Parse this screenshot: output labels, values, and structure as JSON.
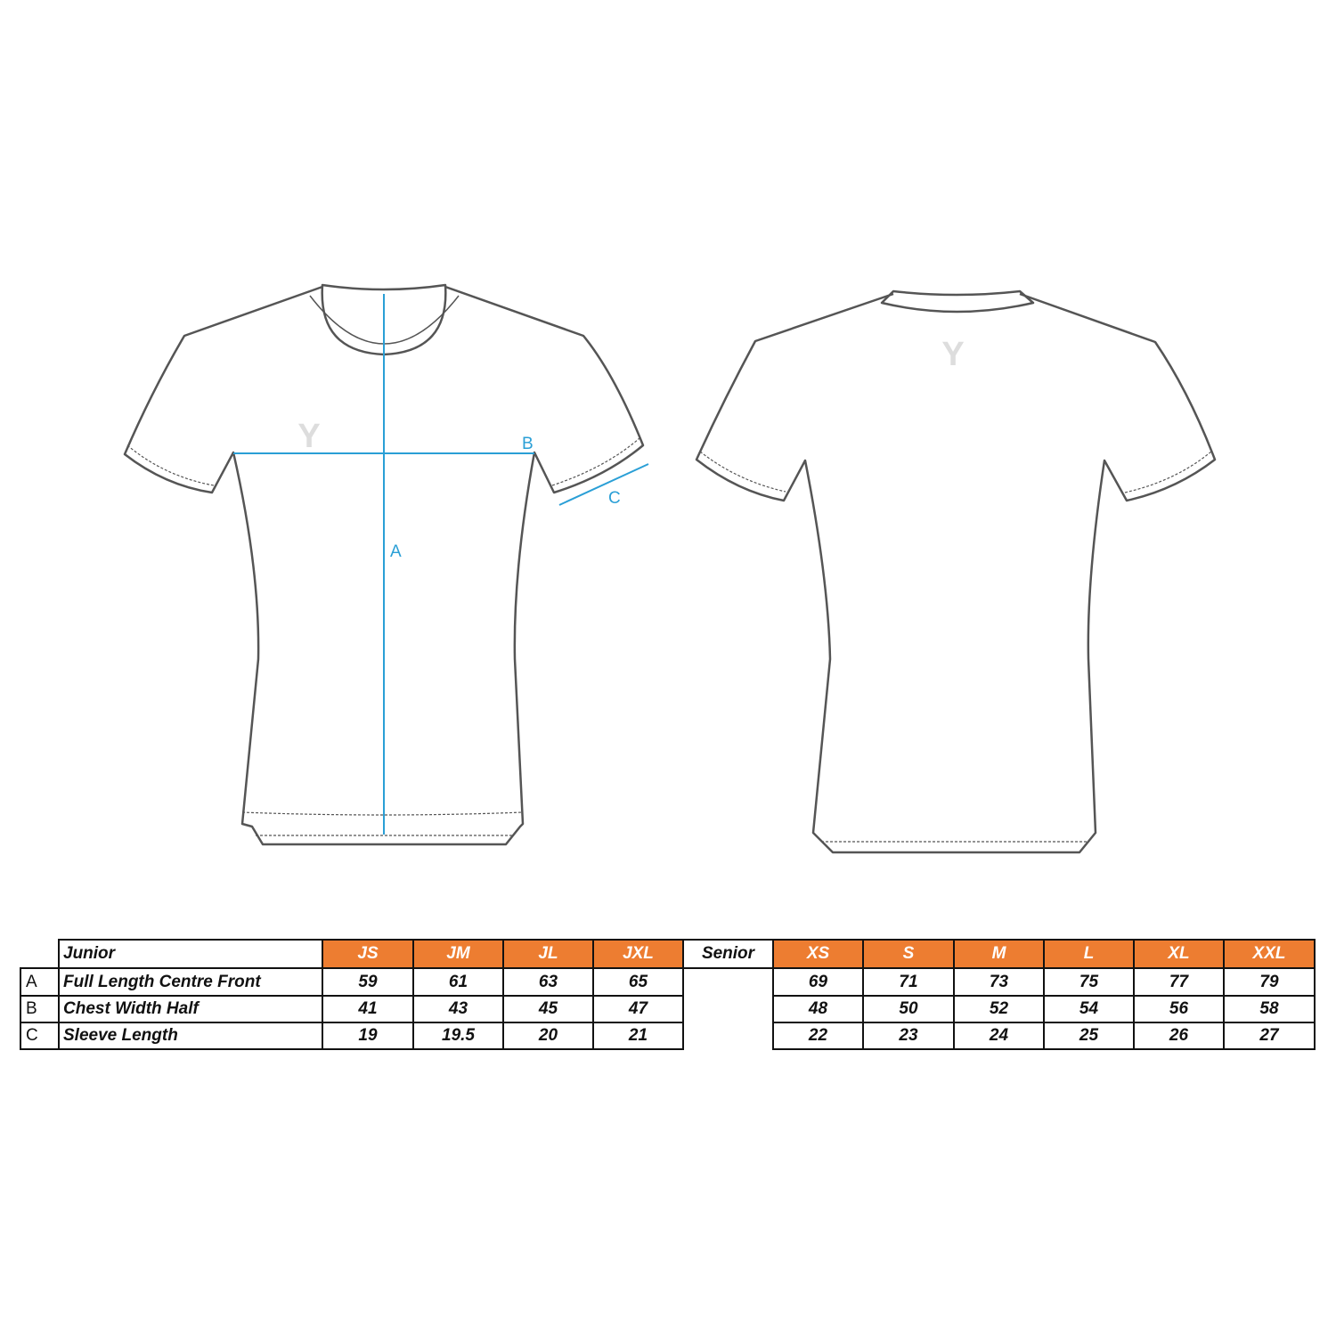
{
  "diagram": {
    "measure_labels": {
      "a": "A",
      "b": "B",
      "c": "C"
    },
    "logo_glyph": "Y",
    "colors": {
      "outline": "#555555",
      "measure": "#2a9fd6",
      "header": "#ed7d31"
    }
  },
  "table": {
    "junior_title": "Junior",
    "senior_title": "Senior",
    "junior_sizes": [
      "JS",
      "JM",
      "JL",
      "JXL"
    ],
    "senior_sizes": [
      "XS",
      "S",
      "M",
      "L",
      "XL",
      "XXL"
    ],
    "rows": [
      {
        "letter": "A",
        "label": "Full Length Centre Front",
        "junior": [
          "59",
          "61",
          "63",
          "65"
        ],
        "senior": [
          "69",
          "71",
          "73",
          "75",
          "77",
          "79"
        ]
      },
      {
        "letter": "B",
        "label": "Chest Width Half",
        "junior": [
          "41",
          "43",
          "45",
          "47"
        ],
        "senior": [
          "48",
          "50",
          "52",
          "54",
          "56",
          "58"
        ]
      },
      {
        "letter": "C",
        "label": "Sleeve Length",
        "junior": [
          "19",
          "19.5",
          "20",
          "21"
        ],
        "senior": [
          "22",
          "23",
          "24",
          "25",
          "26",
          "27"
        ]
      }
    ]
  }
}
